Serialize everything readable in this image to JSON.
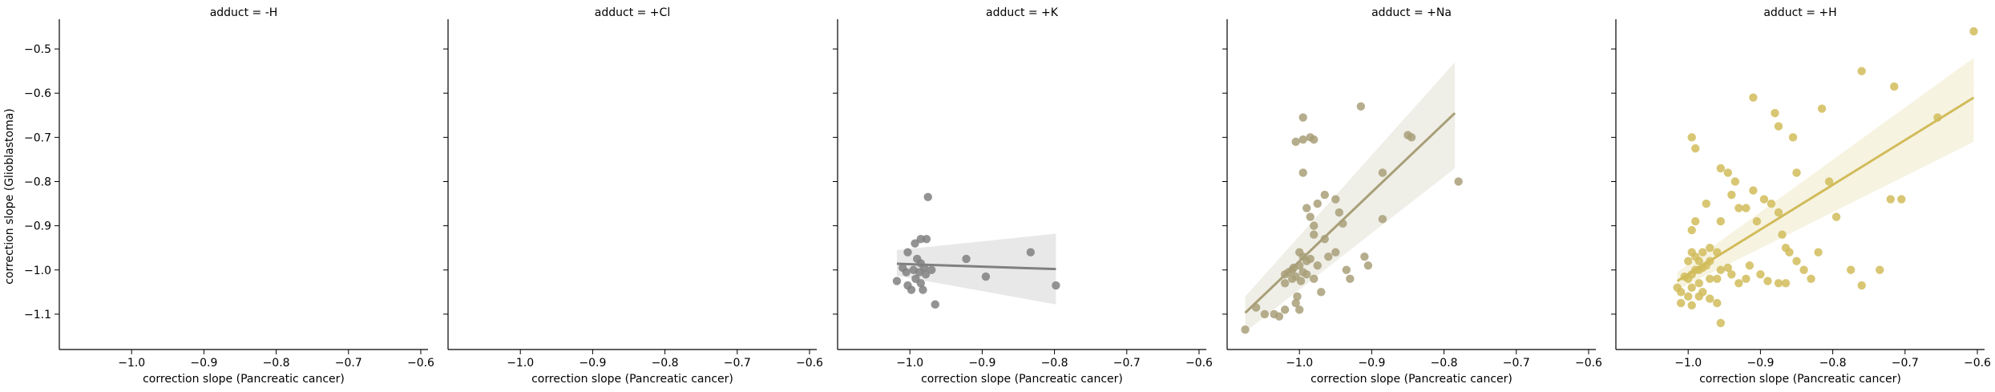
{
  "chart_data": {
    "type": "scatter",
    "ylabel": "correction slope (Glioblastoma)",
    "xlabel": "correction slope (Pancreatic cancer)",
    "xlim": [
      -1.1,
      -0.59
    ],
    "ylim": [
      -1.18,
      -0.44
    ],
    "x_ticks": [
      -1.0,
      -0.9,
      -0.8,
      -0.7,
      -0.6
    ],
    "x_tick_labels": [
      "−1.0",
      "−0.9",
      "−0.8",
      "−0.7",
      "−0.6"
    ],
    "y_ticks": [
      -0.5,
      -0.6,
      -0.7,
      -0.8,
      -0.9,
      -1.0,
      -1.1
    ],
    "y_tick_labels": [
      "−0.5",
      "−0.6",
      "−0.7",
      "−0.8",
      "−0.9",
      "−1.0",
      "−1.1"
    ],
    "grid": false,
    "panels": [
      {
        "title": "adduct = -H",
        "color": "#8c8c8c",
        "points": [],
        "fit": null
      },
      {
        "title": "adduct = +Cl",
        "color": "#8c8c8c",
        "points": [],
        "fit": null
      },
      {
        "title": "adduct = +K",
        "color": "#808080",
        "points": [
          [
            -0.975,
            -0.835
          ],
          [
            -0.993,
            -0.94
          ],
          [
            -0.985,
            -0.93
          ],
          [
            -0.977,
            -0.93
          ],
          [
            -1.003,
            -0.96
          ],
          [
            -0.99,
            -0.975
          ],
          [
            -0.985,
            -0.985
          ],
          [
            -1.01,
            -0.995
          ],
          [
            -0.98,
            -0.995
          ],
          [
            -0.97,
            -1.0
          ],
          [
            -0.995,
            -1.0
          ],
          [
            -1.005,
            -1.005
          ],
          [
            -0.987,
            -1.005
          ],
          [
            -0.978,
            -1.01
          ],
          [
            -0.992,
            -1.02
          ],
          [
            -1.018,
            -1.025
          ],
          [
            -1.003,
            -1.035
          ],
          [
            -0.985,
            -1.03
          ],
          [
            -0.998,
            -1.045
          ],
          [
            -0.982,
            -1.045
          ],
          [
            -0.965,
            -1.078
          ],
          [
            -0.922,
            -0.975
          ],
          [
            -0.895,
            -1.015
          ],
          [
            -0.833,
            -0.96
          ],
          [
            -0.798,
            -1.035
          ]
        ],
        "fit": {
          "x": [
            -1.018,
            -0.798
          ],
          "y": [
            -0.986,
            -0.998
          ],
          "ci_low": [
            -1.013,
            -1.078
          ],
          "ci_high": [
            -0.955,
            -0.918
          ]
        }
      },
      {
        "title": "adduct = +Na",
        "color": "#a89f78",
        "points": [
          [
            -1.075,
            -1.135
          ],
          [
            -1.06,
            -1.085
          ],
          [
            -1.048,
            -1.1
          ],
          [
            -1.035,
            -1.1
          ],
          [
            -1.028,
            -1.105
          ],
          [
            -1.02,
            -1.09
          ],
          [
            -1.005,
            -1.075
          ],
          [
            -1.0,
            -1.09
          ],
          [
            -1.003,
            -1.06
          ],
          [
            -1.02,
            -1.03
          ],
          [
            -1.005,
            -1.015
          ],
          [
            -0.995,
            -1.005
          ],
          [
            -1.01,
            -1.0
          ],
          [
            -1.0,
            -0.99
          ],
          [
            -0.99,
            -0.98
          ],
          [
            -0.985,
            -0.975
          ],
          [
            -0.995,
            -0.97
          ],
          [
            -1.0,
            -0.96
          ],
          [
            -0.98,
            -1.02
          ],
          [
            -0.97,
            -1.05
          ],
          [
            -0.975,
            -0.99
          ],
          [
            -0.96,
            -0.97
          ],
          [
            -0.965,
            -0.93
          ],
          [
            -0.98,
            -0.92
          ],
          [
            -0.98,
            -0.9
          ],
          [
            -0.985,
            -0.88
          ],
          [
            -0.99,
            -0.86
          ],
          [
            -0.975,
            -0.85
          ],
          [
            -0.965,
            -0.83
          ],
          [
            -0.95,
            -0.84
          ],
          [
            -0.945,
            -0.87
          ],
          [
            -0.94,
            -0.895
          ],
          [
            -0.95,
            -0.96
          ],
          [
            -0.935,
            -1.0
          ],
          [
            -0.93,
            -1.02
          ],
          [
            -0.91,
            -0.97
          ],
          [
            -0.905,
            -0.99
          ],
          [
            -0.995,
            -0.78
          ],
          [
            -0.995,
            -0.705
          ],
          [
            -0.985,
            -0.7
          ],
          [
            -0.98,
            -0.705
          ],
          [
            -0.995,
            -0.655
          ],
          [
            -1.005,
            -0.71
          ],
          [
            -0.915,
            -0.63
          ],
          [
            -0.885,
            -0.78
          ],
          [
            -0.885,
            -0.885
          ],
          [
            -0.85,
            -0.695
          ],
          [
            -0.845,
            -0.7
          ],
          [
            -0.78,
            -0.8
          ],
          [
            -1.01,
            -1.02
          ],
          [
            -1.015,
            -1.005
          ],
          [
            -1.02,
            -1.01
          ],
          [
            -1.008,
            -0.995
          ],
          [
            -0.998,
            -1.025
          ],
          [
            -0.99,
            -1.01
          ]
        ],
        "fit": {
          "x": [
            -1.075,
            -0.785
          ],
          "y": [
            -1.097,
            -0.645
          ],
          "ci_low": [
            -1.14,
            -0.77
          ],
          "ci_high": [
            -1.06,
            -0.53
          ]
        }
      },
      {
        "title": "adduct = +H",
        "color": "#d1bc5b",
        "points": [
          [
            -1.01,
            -1.075
          ],
          [
            -1.01,
            -1.05
          ],
          [
            -1.0,
            -1.06
          ],
          [
            -0.995,
            -1.04
          ],
          [
            -1.0,
            -1.02
          ],
          [
            -1.005,
            -1.015
          ],
          [
            -0.995,
            -1.01
          ],
          [
            -0.99,
            -1.0
          ],
          [
            -0.985,
            -1.0
          ],
          [
            -0.98,
            -0.995
          ],
          [
            -0.975,
            -0.99
          ],
          [
            -0.97,
            -0.98
          ],
          [
            -0.985,
            -0.98
          ],
          [
            -0.99,
            -0.97
          ],
          [
            -1.0,
            -0.98
          ],
          [
            -0.995,
            -0.91
          ],
          [
            -0.99,
            -0.89
          ],
          [
            -0.975,
            -0.85
          ],
          [
            -0.955,
            -0.77
          ],
          [
            -0.945,
            -0.78
          ],
          [
            -0.935,
            -0.8
          ],
          [
            -0.94,
            -0.83
          ],
          [
            -0.955,
            -0.89
          ],
          [
            -0.93,
            -0.86
          ],
          [
            -0.92,
            -0.86
          ],
          [
            -0.905,
            -0.89
          ],
          [
            -0.91,
            -0.82
          ],
          [
            -0.895,
            -0.84
          ],
          [
            -0.885,
            -0.85
          ],
          [
            -0.87,
            -0.92
          ],
          [
            -0.875,
            -0.87
          ],
          [
            -0.865,
            -0.95
          ],
          [
            -0.86,
            -0.96
          ],
          [
            -0.85,
            -0.98
          ],
          [
            -0.84,
            -1.0
          ],
          [
            -0.83,
            -1.02
          ],
          [
            -0.82,
            -0.96
          ],
          [
            -0.805,
            -0.8
          ],
          [
            -0.795,
            -0.88
          ],
          [
            -0.775,
            -1.0
          ],
          [
            -0.76,
            -1.035
          ],
          [
            -0.735,
            -1.0
          ],
          [
            -0.72,
            -0.84
          ],
          [
            -0.705,
            -0.84
          ],
          [
            -0.995,
            -0.7
          ],
          [
            -0.99,
            -0.725
          ],
          [
            -0.91,
            -0.61
          ],
          [
            -0.88,
            -0.645
          ],
          [
            -0.875,
            -0.675
          ],
          [
            -0.855,
            -0.7
          ],
          [
            -0.85,
            -0.78
          ],
          [
            -0.815,
            -0.635
          ],
          [
            -0.76,
            -0.55
          ],
          [
            -0.715,
            -0.585
          ],
          [
            -0.655,
            -0.655
          ],
          [
            -0.605,
            -0.46
          ],
          [
            -1.015,
            -1.04
          ],
          [
            -0.98,
            -1.05
          ],
          [
            -0.97,
            -1.065
          ],
          [
            -0.96,
            -1.075
          ],
          [
            -0.985,
            -1.03
          ],
          [
            -0.97,
            -1.02
          ],
          [
            -0.96,
            -1.02
          ],
          [
            -0.955,
            -1.0
          ],
          [
            -0.945,
            -0.995
          ],
          [
            -0.94,
            -1.01
          ],
          [
            -0.93,
            -1.03
          ],
          [
            -0.92,
            -1.02
          ],
          [
            -0.915,
            -0.99
          ],
          [
            -0.9,
            -1.01
          ],
          [
            -0.89,
            -1.025
          ],
          [
            -0.875,
            -1.03
          ],
          [
            -0.865,
            -1.03
          ],
          [
            -0.955,
            -1.12
          ],
          [
            -0.995,
            -1.08
          ],
          [
            -0.985,
            -1.06
          ],
          [
            -0.995,
            -0.96
          ],
          [
            -0.98,
            -0.96
          ],
          [
            -0.97,
            -0.95
          ],
          [
            -0.96,
            -0.96
          ]
        ],
        "fit": {
          "x": [
            -1.015,
            -0.605
          ],
          "y": [
            -1.025,
            -0.61
          ],
          "ci_low": [
            -1.045,
            -0.71
          ],
          "ci_high": [
            -1.005,
            -0.52
          ]
        }
      }
    ]
  }
}
